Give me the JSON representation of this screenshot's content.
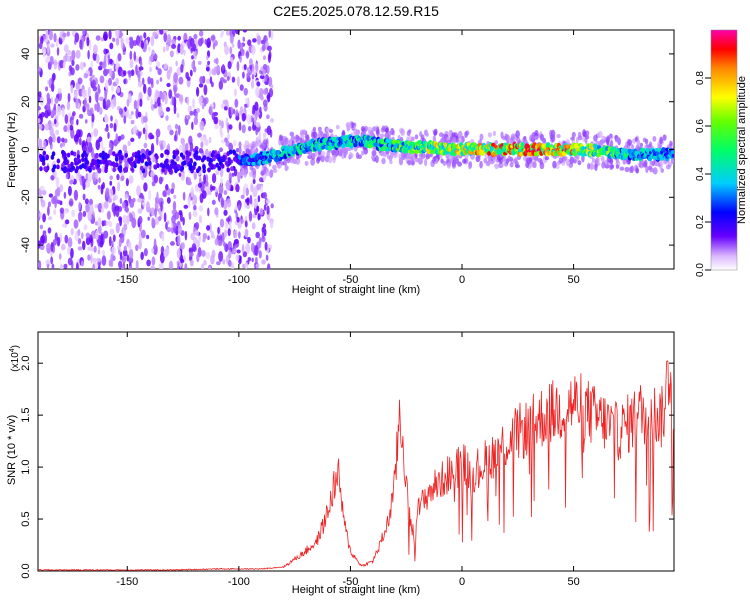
{
  "title": "C2E5.2025.078.12.59.R15",
  "colors": {
    "snr_line": "#ee2222",
    "spectrogram_low": "#cc99ff",
    "spectrogram_mid": "#6600ff"
  },
  "chart_data": [
    {
      "type": "heatmap",
      "xlabel": "Height of straight line (km)",
      "ylabel": "Frequency (Hz)",
      "xlim": [
        -190,
        95
      ],
      "ylim": [
        -50,
        50
      ],
      "x_ticks": [
        -150,
        -100,
        -50,
        0,
        50
      ],
      "y_ticks": [
        -40,
        -20,
        0,
        20,
        40
      ],
      "colorbar": {
        "label": "Normalized spectral amplitude",
        "range": [
          0,
          1
        ],
        "ticks": [
          "0.0",
          "0.2",
          "0.4",
          "0.6",
          "0.8"
        ],
        "colormap": "rainbow"
      },
      "ridge": {
        "x": [
          -100,
          -85,
          -75,
          -65,
          -55,
          -45,
          -35,
          -25,
          -15,
          -5,
          5,
          15,
          25,
          35,
          45,
          55,
          65,
          75,
          85,
          95
        ],
        "freq": [
          -5,
          -3,
          0,
          2,
          3,
          4,
          2,
          1,
          1,
          0,
          0,
          0,
          0,
          0,
          0,
          0,
          -1,
          -2,
          -2,
          -2
        ],
        "amplitude": [
          0.35,
          0.45,
          0.5,
          0.55,
          0.5,
          0.55,
          0.6,
          0.7,
          0.8,
          0.85,
          0.9,
          0.95,
          1.0,
          1.0,
          0.95,
          0.85,
          0.7,
          0.55,
          0.45,
          0.4
        ]
      }
    },
    {
      "type": "line",
      "xlabel": "Height of straight line (km)",
      "ylabel": "SNR (10 * v/v)",
      "y_scale_label": "(x10",
      "y_scale_exp": "4",
      "y_scale_close": ")",
      "xlim": [
        -190,
        95
      ],
      "ylim": [
        0,
        2.3
      ],
      "x_ticks": [
        -150,
        -100,
        -50,
        0,
        50
      ],
      "y_ticks": [
        "0.0",
        "0.5",
        "1.0",
        "1.5",
        "2.0"
      ],
      "series": [
        {
          "x": [
            -190,
            -170,
            -150,
            -130,
            -110,
            -90,
            -80,
            -75,
            -70,
            -65,
            -60,
            -57,
            -55,
            -53,
            -50,
            -45,
            -40,
            -37,
            -33,
            -30,
            -28,
            -26,
            -24,
            -22,
            -20,
            -15,
            -10,
            -5,
            0,
            5,
            10,
            15,
            20,
            25,
            30,
            35,
            40,
            45,
            50,
            55,
            60,
            65,
            70,
            75,
            80,
            85,
            90,
            93,
            95
          ],
          "y": [
            0.01,
            0.01,
            0.01,
            0.01,
            0.02,
            0.02,
            0.04,
            0.12,
            0.2,
            0.3,
            0.6,
            0.9,
            0.95,
            0.5,
            0.2,
            0.05,
            0.1,
            0.25,
            0.5,
            0.9,
            1.6,
            1.2,
            0.6,
            0.4,
            0.6,
            0.8,
            0.9,
            1.0,
            1.1,
            1.0,
            1.1,
            1.2,
            1.3,
            1.4,
            1.45,
            1.55,
            1.6,
            1.65,
            1.7,
            1.65,
            1.55,
            1.5,
            1.4,
            1.5,
            1.6,
            1.6,
            1.55,
            2.1,
            1.6
          ]
        }
      ]
    }
  ]
}
